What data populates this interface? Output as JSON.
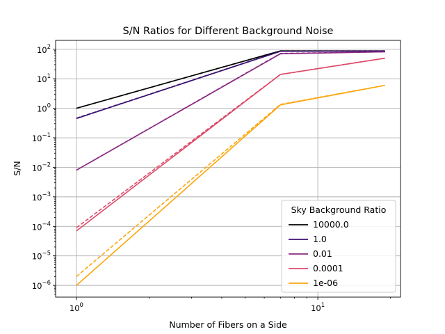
{
  "chart_data": {
    "type": "line",
    "title": "S/N Ratios for Different Background Noise",
    "xlabel": "Number of Fibers on a Side",
    "ylabel": "S/N",
    "xscale": "log",
    "yscale": "log",
    "xlim": [
      0.82,
      22
    ],
    "ylim": [
      4e-07,
      200
    ],
    "grid": true,
    "legend": {
      "title": "Sky Background Ratio",
      "placement": "lower-right"
    },
    "x_ticks": [
      {
        "value": 1,
        "base": "10",
        "exp": "0"
      },
      {
        "value": 10,
        "base": "10",
        "exp": "1"
      }
    ],
    "y_ticks": [
      {
        "value": 1e-06,
        "base": "10",
        "exp": "−6"
      },
      {
        "value": 1e-05,
        "base": "10",
        "exp": "−5"
      },
      {
        "value": 0.0001,
        "base": "10",
        "exp": "−4"
      },
      {
        "value": 0.001,
        "base": "10",
        "exp": "−3"
      },
      {
        "value": 0.01,
        "base": "10",
        "exp": "−2"
      },
      {
        "value": 0.1,
        "base": "10",
        "exp": "−1"
      },
      {
        "value": 1,
        "base": "10",
        "exp": "0"
      },
      {
        "value": 10,
        "base": "10",
        "exp": "1"
      },
      {
        "value": 100,
        "base": "10",
        "exp": "2"
      }
    ],
    "series": [
      {
        "name": "10000.0",
        "color": "#000000",
        "solid": {
          "x": [
            1,
            7,
            19
          ],
          "y": [
            1.0,
            88,
            88
          ]
        },
        "dashed": {
          "x": [
            1,
            7,
            19
          ],
          "y": [
            1.0,
            88,
            88
          ]
        }
      },
      {
        "name": "1.0",
        "color": "#3b0f70",
        "solid": {
          "x": [
            1,
            7,
            19
          ],
          "y": [
            0.45,
            85,
            87
          ]
        },
        "dashed": {
          "x": [
            1,
            7,
            19
          ],
          "y": [
            0.46,
            86,
            87
          ]
        }
      },
      {
        "name": "0.01",
        "color": "#8c2981",
        "solid": {
          "x": [
            1,
            7,
            19
          ],
          "y": [
            0.008,
            70,
            82
          ]
        },
        "dashed": {
          "x": [
            1,
            7,
            19
          ],
          "y": [
            0.008,
            72,
            82
          ]
        }
      },
      {
        "name": "0.0001",
        "color": "#de4968",
        "solid": {
          "x": [
            1,
            7,
            19
          ],
          "y": [
            7e-05,
            14,
            50
          ]
        },
        "dashed": {
          "x": [
            1,
            7,
            19
          ],
          "y": [
            9e-05,
            14,
            50
          ]
        }
      },
      {
        "name": "1e-06",
        "color": "#fca50a",
        "solid": {
          "x": [
            1,
            7,
            19
          ],
          "y": [
            1e-06,
            1.3,
            6
          ]
        },
        "dashed": {
          "x": [
            1,
            7,
            19
          ],
          "y": [
            2e-06,
            1.35,
            6
          ]
        }
      }
    ]
  }
}
